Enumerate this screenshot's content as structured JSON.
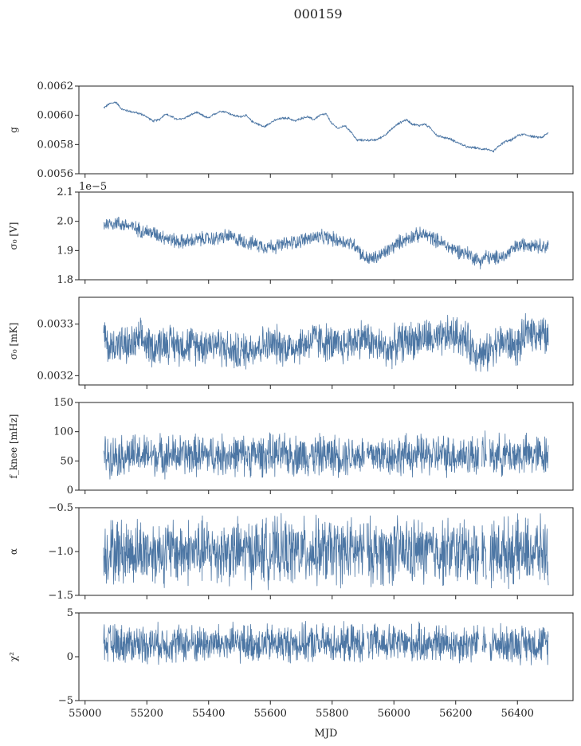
{
  "figure": {
    "title": "000159",
    "xlabel": "MJD"
  },
  "colors": {
    "series": "#4c76a4",
    "axis": "#222222"
  },
  "chart_data": [
    {
      "type": "line",
      "panel": "gain",
      "ylabel": "g",
      "ylim": [
        0.0056,
        0.0062
      ],
      "yticks": [
        "0.0056",
        "0.0058",
        "0.0060",
        "0.0062"
      ],
      "xlim": [
        54980,
        56580
      ],
      "x": [
        55060,
        55080,
        55100,
        55120,
        55140,
        55160,
        55180,
        55200,
        55220,
        55240,
        55260,
        55280,
        55300,
        55320,
        55340,
        55360,
        55380,
        55400,
        55420,
        55440,
        55460,
        55480,
        55500,
        55520,
        55540,
        55560,
        55580,
        55600,
        55620,
        55640,
        55660,
        55680,
        55700,
        55720,
        55740,
        55760,
        55780,
        55800,
        55820,
        55840,
        55860,
        55880,
        55900,
        55920,
        55940,
        55960,
        55980,
        56000,
        56020,
        56040,
        56060,
        56080,
        56100,
        56120,
        56140,
        56160,
        56180,
        56200,
        56220,
        56240,
        56260,
        56280,
        56300,
        56320,
        56340,
        56360,
        56380,
        56400,
        56420,
        56440,
        56460,
        56480,
        56500
      ],
      "values": [
        0.00605,
        0.00608,
        0.00609,
        0.00604,
        0.00603,
        0.00602,
        0.00601,
        0.00599,
        0.00596,
        0.00597,
        0.00601,
        0.00599,
        0.00597,
        0.00598,
        0.006,
        0.00602,
        0.006,
        0.00598,
        0.00601,
        0.00603,
        0.00602,
        0.006,
        0.00599,
        0.006,
        0.00596,
        0.00594,
        0.00592,
        0.00595,
        0.00597,
        0.00598,
        0.00598,
        0.00596,
        0.00598,
        0.00599,
        0.00597,
        0.006,
        0.00601,
        0.00594,
        0.00591,
        0.00593,
        0.00589,
        0.00583,
        0.00583,
        0.00583,
        0.00583,
        0.00585,
        0.00588,
        0.00592,
        0.00595,
        0.00597,
        0.00594,
        0.00593,
        0.00594,
        0.00591,
        0.00586,
        0.00585,
        0.00584,
        0.00582,
        0.0058,
        0.00578,
        0.00578,
        0.00577,
        0.00577,
        0.00575,
        0.00579,
        0.00582,
        0.00583,
        0.00586,
        0.00587,
        0.00586,
        0.00585,
        0.00585,
        0.00588
      ],
      "noise": 1e-05
    },
    {
      "type": "line",
      "panel": "sigma0-volts",
      "ylabel": "σ₀ [V]",
      "offset_text": "1e−5",
      "ylim": [
        1.8,
        2.1
      ],
      "yticks": [
        "1.8",
        "1.9",
        "2.0",
        "2.1"
      ],
      "xlim": [
        54980,
        56580
      ],
      "x": [
        55060,
        55100,
        55140,
        55180,
        55220,
        55260,
        55300,
        55340,
        55380,
        55420,
        55460,
        55500,
        55540,
        55580,
        55620,
        55660,
        55700,
        55740,
        55780,
        55820,
        55860,
        55880,
        55900,
        55920,
        55940,
        55960,
        55980,
        56000,
        56020,
        56060,
        56100,
        56140,
        56180,
        56220,
        56240,
        56260,
        56280,
        56300,
        56320,
        56340,
        56360,
        56380,
        56400,
        56440,
        56480,
        56500
      ],
      "values": [
        1.99,
        1.995,
        1.985,
        1.97,
        1.96,
        1.945,
        1.93,
        1.932,
        1.94,
        1.94,
        1.95,
        1.935,
        1.925,
        1.915,
        1.915,
        1.925,
        1.935,
        1.945,
        1.945,
        1.935,
        1.925,
        1.915,
        1.88,
        1.87,
        1.875,
        1.885,
        1.9,
        1.915,
        1.93,
        1.95,
        1.955,
        1.935,
        1.91,
        1.895,
        1.89,
        1.875,
        1.865,
        1.88,
        1.87,
        1.88,
        1.88,
        1.9,
        1.915,
        1.925,
        1.915,
        1.915
      ],
      "noise": 0.03
    },
    {
      "type": "line",
      "panel": "sigma0-millikelvin",
      "ylabel": "σ₀ [mK]",
      "ylim": [
        0.003182,
        0.003352
      ],
      "yticks": [
        "0.0032",
        "0.0033"
      ],
      "xlim": [
        54980,
        56580
      ],
      "x": [
        55060,
        55080,
        55100,
        55140,
        55180,
        55220,
        55260,
        55300,
        55340,
        55380,
        55420,
        55460,
        55500,
        55540,
        55580,
        55620,
        55660,
        55700,
        55740,
        55780,
        55820,
        55860,
        55900,
        55940,
        55980,
        56020,
        56060,
        56100,
        56140,
        56180,
        56220,
        56260,
        56280,
        56300,
        56320,
        56360,
        56400,
        56440,
        56480,
        56500
      ],
      "values": [
        0.00328,
        0.00325,
        0.003265,
        0.003255,
        0.00327,
        0.003255,
        0.003265,
        0.00326,
        0.00326,
        0.00326,
        0.003265,
        0.00325,
        0.003245,
        0.003255,
        0.00326,
        0.00326,
        0.003255,
        0.00326,
        0.00327,
        0.003265,
        0.003255,
        0.003265,
        0.003275,
        0.00326,
        0.00325,
        0.003265,
        0.00327,
        0.003275,
        0.003265,
        0.00328,
        0.003275,
        0.00325,
        0.003245,
        0.00324,
        0.00326,
        0.003265,
        0.003255,
        0.00329,
        0.00328,
        0.00327
      ],
      "noise": 4.5e-05
    },
    {
      "type": "line",
      "panel": "knee-frequency",
      "ylabel": "f_knee [mHz]",
      "ylim": [
        0,
        150
      ],
      "yticks": [
        "0",
        "50",
        "100",
        "150"
      ],
      "xlim": [
        54980,
        56580
      ],
      "x": [
        55060,
        56500
      ],
      "values": [
        60,
        60
      ],
      "noise": 42,
      "gaps": [
        [
          55905,
          55912
        ],
        [
          56275,
          56285
        ],
        [
          56300,
          56310
        ]
      ]
    },
    {
      "type": "line",
      "panel": "alpha",
      "ylabel": "α",
      "ylim": [
        -1.5,
        -0.5
      ],
      "yticks": [
        "−1.5",
        "−1.0",
        "−0.5"
      ],
      "xlim": [
        54980,
        56580
      ],
      "x": [
        55060,
        56500
      ],
      "values": [
        -1.0,
        -1.0
      ],
      "noise": 0.45,
      "gaps": [
        [
          55905,
          55912
        ],
        [
          56275,
          56285
        ],
        [
          56300,
          56310
        ]
      ]
    },
    {
      "type": "line",
      "panel": "chi-squared",
      "ylabel": "χ²",
      "ylim": [
        -5,
        5
      ],
      "yticks": [
        "−5",
        "0",
        "5"
      ],
      "xlim": [
        54980,
        56580
      ],
      "x": [
        55060,
        56500
      ],
      "values": [
        1.5,
        1.5
      ],
      "noise": 2.6,
      "gaps": [
        [
          55905,
          55912
        ],
        [
          56275,
          56285
        ],
        [
          56300,
          56310
        ]
      ]
    }
  ],
  "xticks": [
    "55000",
    "55200",
    "55400",
    "55600",
    "55800",
    "56000",
    "56200",
    "56400"
  ],
  "xtick_values": [
    55000,
    55200,
    55400,
    55600,
    55800,
    56000,
    56200,
    56400
  ]
}
